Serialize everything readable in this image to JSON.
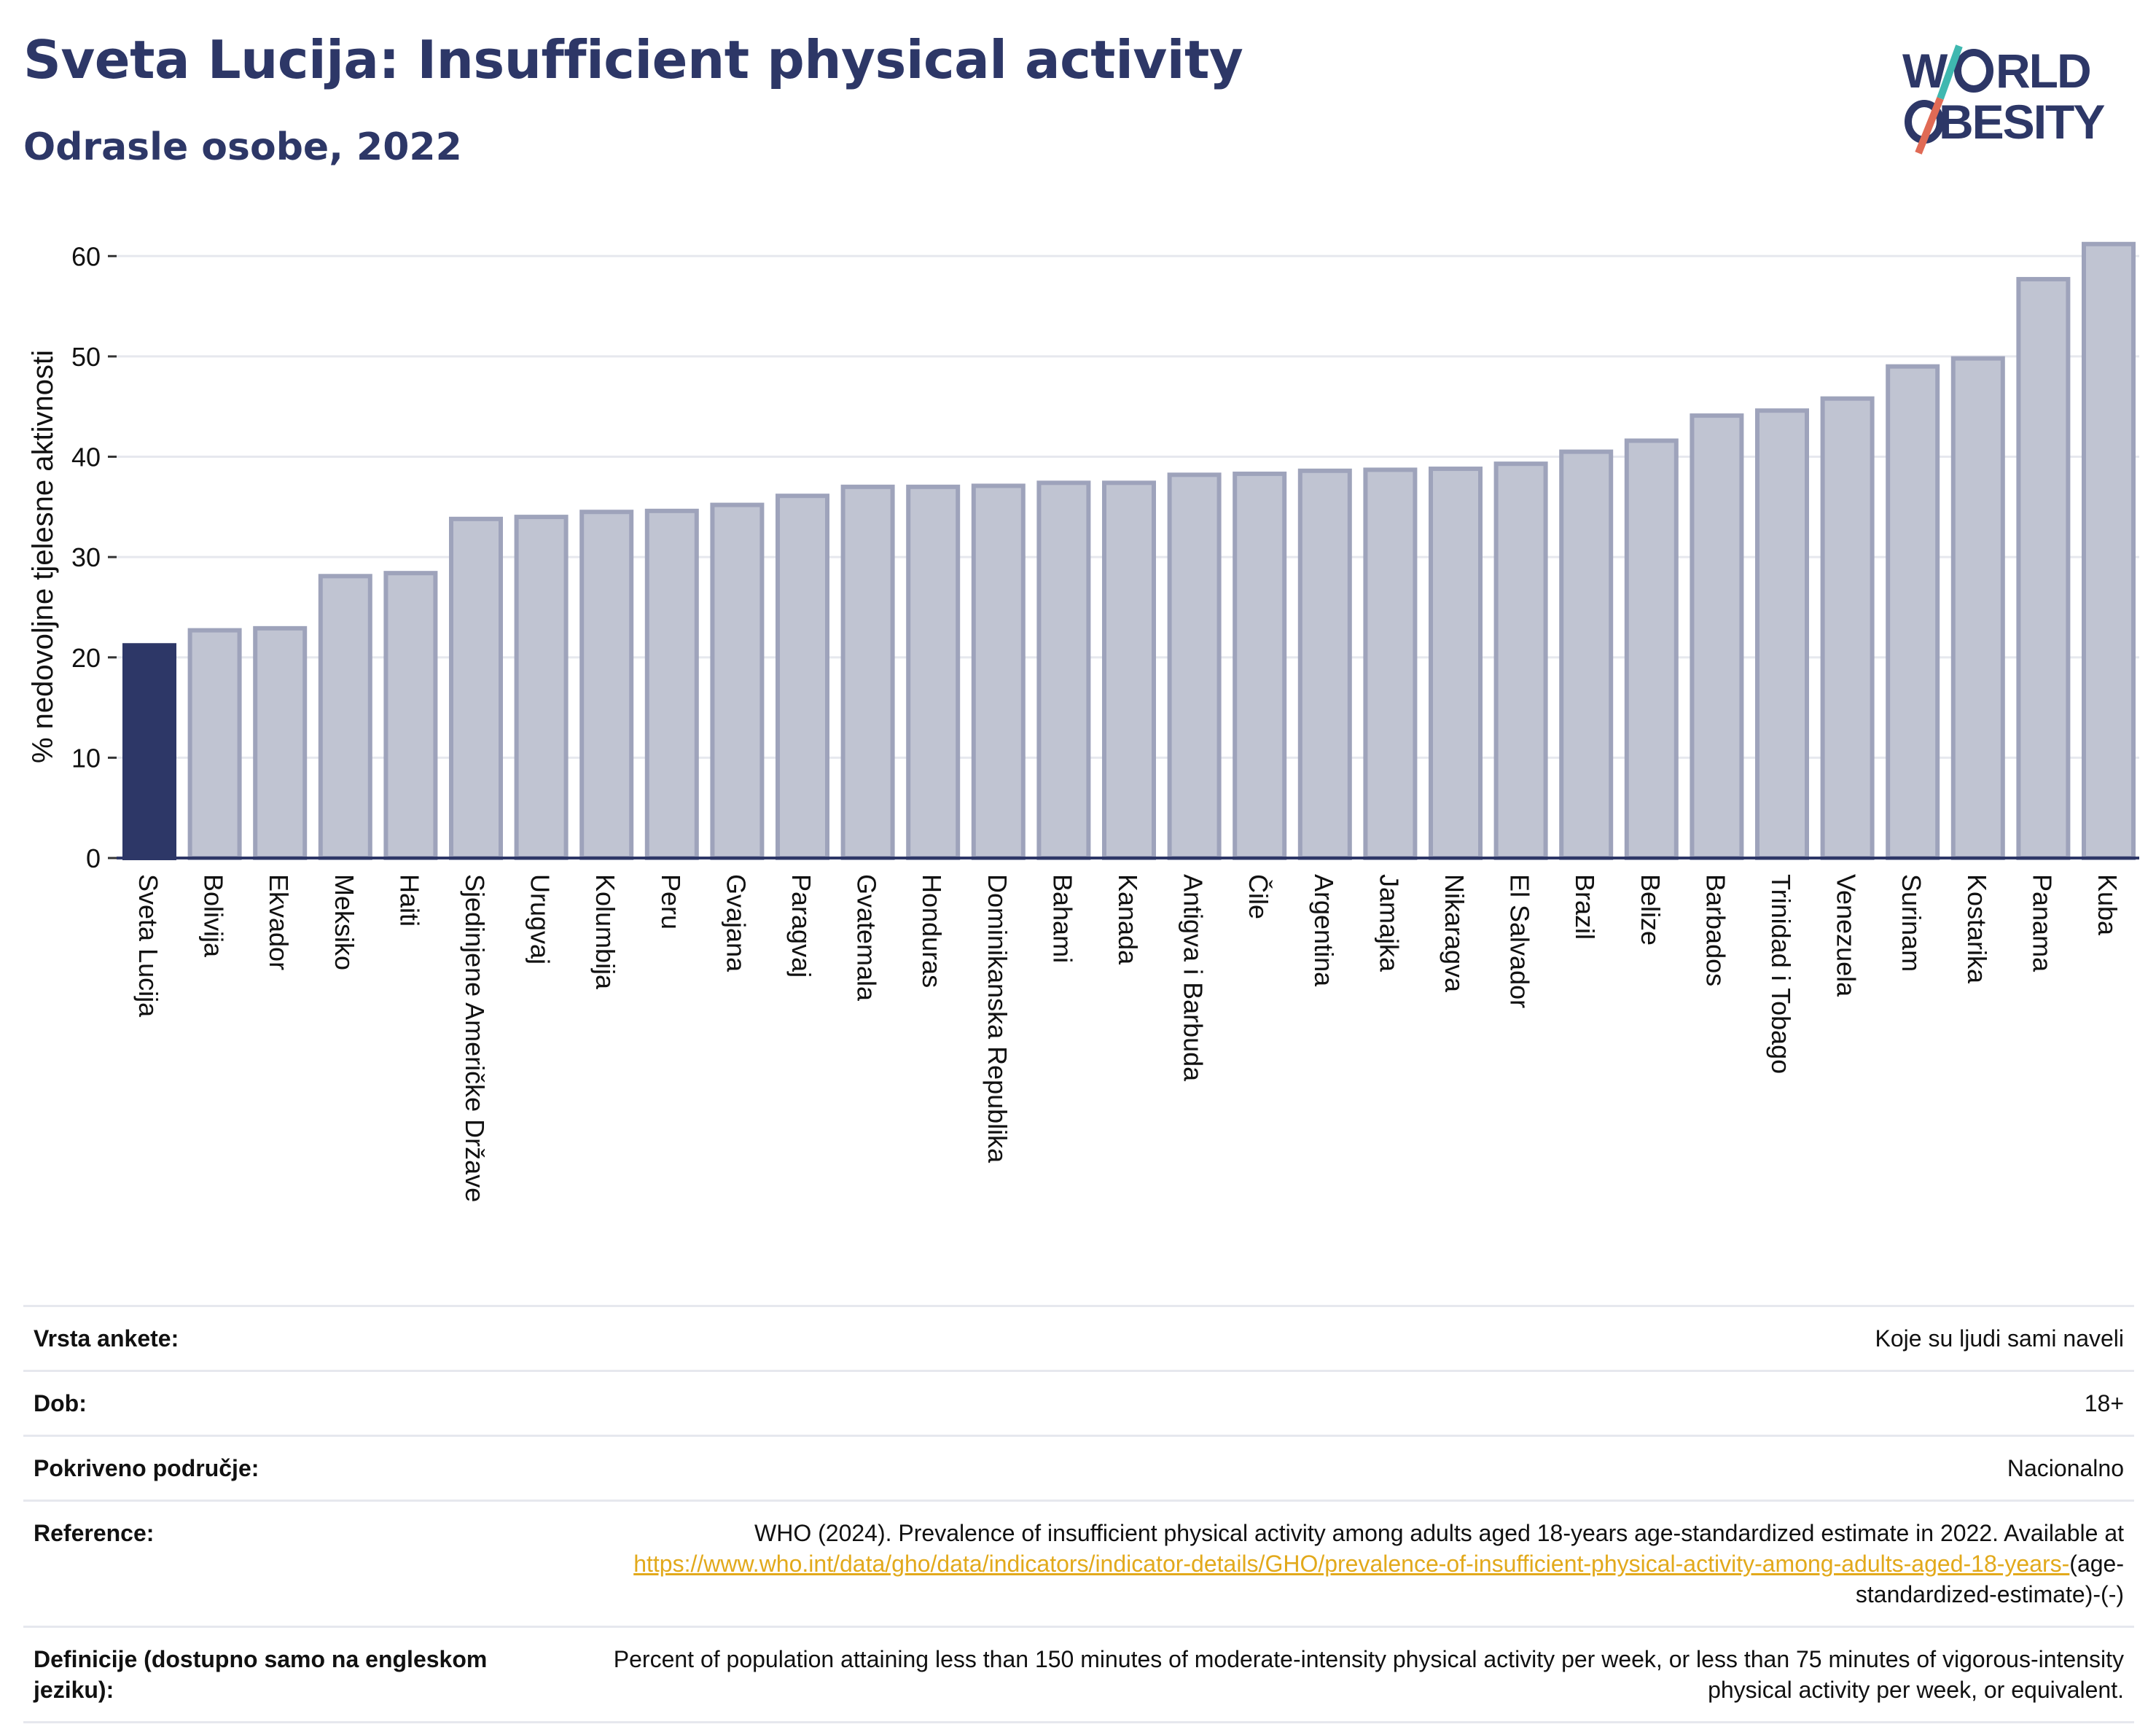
{
  "header": {
    "title": "Sveta Lucija: Insufficient physical activity",
    "subtitle": "Odrasle osobe, 2022"
  },
  "logo": {
    "line1": "W RLD",
    "line2": "BESITY",
    "colors": {
      "text": "#2d3767",
      "slash_top": "#3fb8b0",
      "slash_bottom": "#e06a55"
    }
  },
  "colors": {
    "highlight_bar": "#2d3767",
    "other_bar_fill": "#c0c4d2",
    "other_bar_stroke": "#9ea3bb",
    "grid": "#e6e8ee",
    "axis": "#2d3767",
    "link": "#e2a91b"
  },
  "chart_data": {
    "type": "bar",
    "ylabel": "% nedovoljne tjelesne aktivnosti",
    "ylim": [
      0,
      63
    ],
    "yticks": [
      0,
      10,
      20,
      30,
      40,
      50,
      60
    ],
    "grid": true,
    "highlight": "Sveta Lucija",
    "categories": [
      "Sveta Lucija",
      "Bolivija",
      "Ekvador",
      "Meksiko",
      "Haiti",
      "Sjedinjene Američke Države",
      "Urugvaj",
      "Kolumbija",
      "Peru",
      "Gvajana",
      "Paragvaj",
      "Gvatemala",
      "Honduras",
      "Dominikanska Republika",
      "Bahami",
      "Kanada",
      "Antigva i Barbuda",
      "Čile",
      "Argentina",
      "Jamajka",
      "Nikaragva",
      "El Salvador",
      "Brazil",
      "Belize",
      "Barbados",
      "Trinidad i Tobago",
      "Venezuela",
      "Surinam",
      "Kostarika",
      "Panama",
      "Kuba"
    ],
    "values": [
      21.2,
      22.7,
      22.9,
      28.1,
      28.4,
      33.8,
      34.0,
      34.5,
      34.6,
      35.2,
      36.1,
      37.0,
      37.0,
      37.1,
      37.4,
      37.4,
      38.2,
      38.3,
      38.6,
      38.7,
      38.8,
      39.3,
      40.5,
      41.6,
      44.1,
      44.6,
      45.8,
      49.0,
      49.8,
      57.7,
      61.2
    ]
  },
  "meta": {
    "survey_type_label": "Vrsta ankete:",
    "survey_type_value": "Koje su ljudi sami naveli",
    "age_label": "Dob:",
    "age_value": "18+",
    "coverage_label": "Pokriveno područje:",
    "coverage_value": "Nacionalno",
    "reference_label": "Reference:",
    "reference_text": "WHO (2024). Prevalence of insufficient physical activity among adults aged 18-years age-standardized estimate in 2022. Available at",
    "reference_link": "https://www.who.int/data/gho/data/indicators/indicator-details/GHO/prevalence-of-insufficient-physical-activity-among-adults-aged-18-years-",
    "reference_suffix": "(age-standardized-estimate)-(-)",
    "definition_label": "Definicije (dostupno samo na engleskom jeziku):",
    "definition_value": "Percent of population attaining less than 150 minutes of moderate-intensity physical activity per week, or less than 75 minutes of vigorous-intensity physical activity per week, or equivalent."
  }
}
